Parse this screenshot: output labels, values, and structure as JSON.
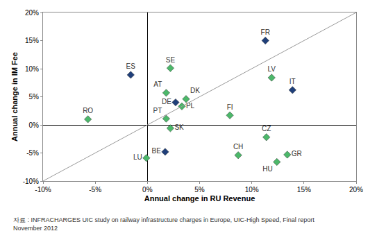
{
  "chart_data": {
    "type": "scatter",
    "x_label": "Annual change in RU Revenue",
    "y_label": "Annual change in IM Fee",
    "labels": [
      "FR",
      "ES",
      "SE",
      "LV",
      "IT",
      "AT",
      "DK",
      "DE",
      "PL",
      "PT",
      "RO",
      "FI",
      "SK",
      "CZ",
      "BE",
      "CH",
      "GR",
      "HU",
      "LU"
    ],
    "x": [
      11.3,
      -1.6,
      2.2,
      11.9,
      13.9,
      1.8,
      3.7,
      2.7,
      3.3,
      1.8,
      -5.7,
      7.9,
      2.2,
      11.4,
      1.7,
      8.7,
      13.4,
      12.4,
      -0.1
    ],
    "values": [
      15.0,
      8.9,
      10.1,
      8.4,
      6.2,
      5.7,
      4.6,
      4.0,
      3.3,
      1.1,
      1.0,
      1.7,
      -0.6,
      -2.2,
      -4.8,
      -5.4,
      -5.3,
      -6.6,
      -5.9
    ],
    "colors": [
      "#1f3f7a",
      "#1f3f7a",
      "#4cb86a",
      "#4cb86a",
      "#1f3f7a",
      "#4cb86a",
      "#4cb86a",
      "#1f3f7a",
      "#4cb86a",
      "#4cb86a",
      "#4cb86a",
      "#4cb86a",
      "#4cb86a",
      "#4cb86a",
      "#1f3f7a",
      "#4cb86a",
      "#4cb86a",
      "#4cb86a",
      "#4cb86a"
    ],
    "marker": "diamond",
    "xlim": [
      -10,
      20
    ],
    "ylim": [
      -10,
      20
    ],
    "xticks": [
      {
        "value": -10,
        "label": "-10%"
      },
      {
        "value": -5,
        "label": "-5%"
      },
      {
        "value": 0,
        "label": "0%"
      },
      {
        "value": 5,
        "label": "5%"
      },
      {
        "value": 10,
        "label": "10%"
      },
      {
        "value": 15,
        "label": "15%"
      },
      {
        "value": 20,
        "label": "20%"
      }
    ],
    "yticks": [
      {
        "value": -10,
        "label": "-10%"
      },
      {
        "value": -5,
        "label": "-5%"
      },
      {
        "value": 0,
        "label": "0%"
      },
      {
        "value": 5,
        "label": "5%"
      },
      {
        "value": 10,
        "label": "10%"
      },
      {
        "value": 15,
        "label": "15%"
      },
      {
        "value": 20,
        "label": "20%"
      }
    ],
    "grid": false,
    "annotations": [
      "자료 : INFRACHARGES UIC study on railway infrastructure charges in Europe, UIC-High Speed, Final report",
      "November 2012"
    ]
  }
}
